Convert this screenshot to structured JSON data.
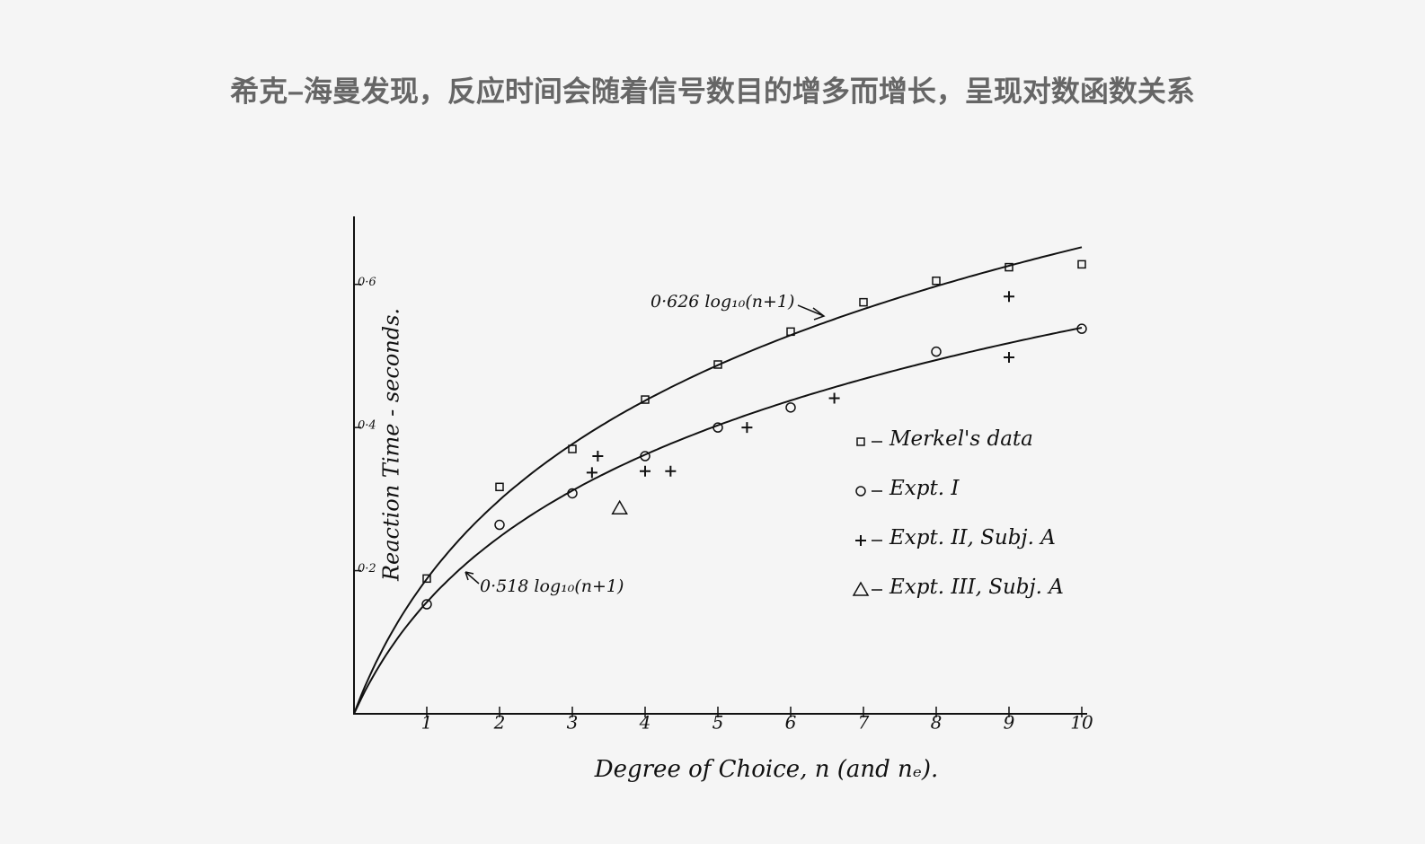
{
  "chart_data": {
    "type": "scatter",
    "title": "希克–海曼发现，反应时间会随着信号数目的增多而增长，呈现对数函数关系",
    "x_label": "Degree of Choice, n   (and nₑ).",
    "y_label": "Reaction Time - seconds.",
    "xlim": [
      0,
      10
    ],
    "ylim": [
      0,
      0.7
    ],
    "xticks": [
      1,
      2,
      3,
      4,
      5,
      6,
      7,
      8,
      9,
      10
    ],
    "yticks": [
      {
        "value": 0.2,
        "label": "0·2"
      },
      {
        "value": 0.4,
        "label": "0·4"
      },
      {
        "value": 0.6,
        "label": "0·6"
      }
    ],
    "color": "#111111",
    "series": [
      {
        "name": "Merkel's data",
        "marker": "square",
        "x": [
          1,
          2,
          3,
          4,
          5,
          6,
          7,
          8,
          9,
          10
        ],
        "values": [
          0.189,
          0.317,
          0.37,
          0.439,
          0.488,
          0.534,
          0.575,
          0.605,
          0.624,
          0.628
        ]
      },
      {
        "name": "Expt. I",
        "marker": "circle",
        "x": [
          1,
          2,
          3,
          4,
          5,
          6,
          8,
          10
        ],
        "values": [
          0.153,
          0.264,
          0.308,
          0.36,
          0.4,
          0.428,
          0.506,
          0.538
        ]
      },
      {
        "name": "Expt. II, Subj. A",
        "marker": "plus",
        "x": [
          3.27,
          3.35,
          4.0,
          4.35,
          5.4,
          6.6,
          9.0,
          9.0
        ],
        "values": [
          0.337,
          0.36,
          0.339,
          0.339,
          0.4,
          0.441,
          0.583,
          0.498
        ]
      },
      {
        "name": "Expt. III, Subj. A",
        "marker": "triangle",
        "x": [
          3.65
        ],
        "values": [
          0.287
        ]
      }
    ],
    "fits": [
      {
        "label": "0·626 log₁₀(n+1)",
        "coefficient": 0.626
      },
      {
        "label": "0·518 log₁₀(n+1)",
        "coefficient": 0.518
      }
    ]
  }
}
